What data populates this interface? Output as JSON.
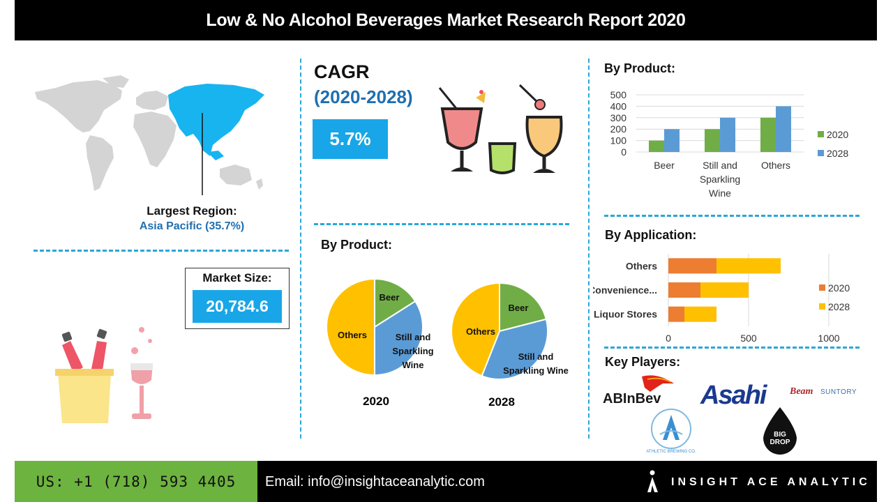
{
  "header": {
    "title": "Low & No Alcohol Beverages Market Research Report 2020"
  },
  "region": {
    "label": "Largest Region:",
    "value": "Asia Pacific (35.7%)"
  },
  "cagr": {
    "title": "CAGR",
    "period": "(2020-2028)",
    "value": "5.7%"
  },
  "market_size": {
    "label": "Market Size:",
    "value": "20,784.6"
  },
  "product_pie": {
    "heading": "By Product:",
    "year_2020": "2020",
    "year_2028": "2028"
  },
  "product_bar": {
    "heading": "By Product:"
  },
  "application": {
    "heading": "By Application:"
  },
  "players": {
    "heading": "Key Players:",
    "logos": [
      {
        "name": "ABInBev",
        "text": "ABInBev"
      },
      {
        "name": "Asahi",
        "text": "Asahi"
      },
      {
        "name": "Beam Suntory",
        "text": "Beam SUNTORY"
      },
      {
        "name": "Athletic Brewing Co.",
        "text": "ATHLETIC BREWING CO."
      },
      {
        "name": "Big Drop Brewing Co.",
        "text": "BIG DROP"
      }
    ]
  },
  "footer": {
    "phone": "US: +1 (718) 593 4405",
    "email": "Email: info@insightaceanalytic.com",
    "brand": "INSIGHT ACE ANALYTIC"
  },
  "colors": {
    "accent_blue": "#18a6e8",
    "heading_blue": "#1f6fb0",
    "green": "#6db33f",
    "bar_2020": "#70ad47",
    "bar_2028": "#5b9bd5",
    "app_2020": "#ed7d31",
    "app_2028": "#ffc000",
    "pie_beer": "#70ad47",
    "pie_wine": "#5b9bd5",
    "pie_others": "#ffc000"
  },
  "chart_data": [
    {
      "type": "pie",
      "title": "2020",
      "labels": [
        "Beer",
        "Still and Sparkling Wine",
        "Others"
      ],
      "values": [
        16,
        34,
        50
      ],
      "label_lines": [
        [
          "Beer"
        ],
        [
          "Still and",
          "Sparkling",
          "Wine"
        ],
        [
          "Others"
        ]
      ]
    },
    {
      "type": "pie",
      "title": "2028",
      "labels": [
        "Beer",
        "Still and Sparkling Wine",
        "Others"
      ],
      "values": [
        21,
        35,
        44
      ],
      "label_lines": [
        [
          "Beer"
        ],
        [
          "Still and",
          "Sparkling Wine"
        ],
        [
          "Others"
        ]
      ]
    },
    {
      "type": "bar",
      "title": "By Product:",
      "categories": [
        "Beer",
        "Still and Sparkling Wine",
        "Others"
      ],
      "category_lines": [
        [
          "Beer"
        ],
        [
          "Still and",
          "Sparkling",
          "Wine"
        ],
        [
          "Others"
        ]
      ],
      "series": [
        {
          "name": "2020",
          "values": [
            100,
            200,
            300
          ]
        },
        {
          "name": "2028",
          "values": [
            200,
            300,
            400
          ]
        }
      ],
      "ylim": [
        0,
        500
      ],
      "yticks": [
        "0",
        "100",
        "200",
        "300",
        "400",
        "500"
      ],
      "grid": true,
      "legend": "right"
    },
    {
      "type": "bar",
      "orientation": "horizontal",
      "stacked": true,
      "title": "By Application:",
      "categories": [
        "Others",
        "Convenience...",
        "Liquor Stores"
      ],
      "series": [
        {
          "name": "2020",
          "values": [
            300,
            200,
            100
          ]
        },
        {
          "name": "2028",
          "values": [
            400,
            300,
            200
          ]
        }
      ],
      "xlim": [
        0,
        1000
      ],
      "xticks": [
        "0",
        "500",
        "1000"
      ],
      "grid": true,
      "legend": "right"
    }
  ]
}
